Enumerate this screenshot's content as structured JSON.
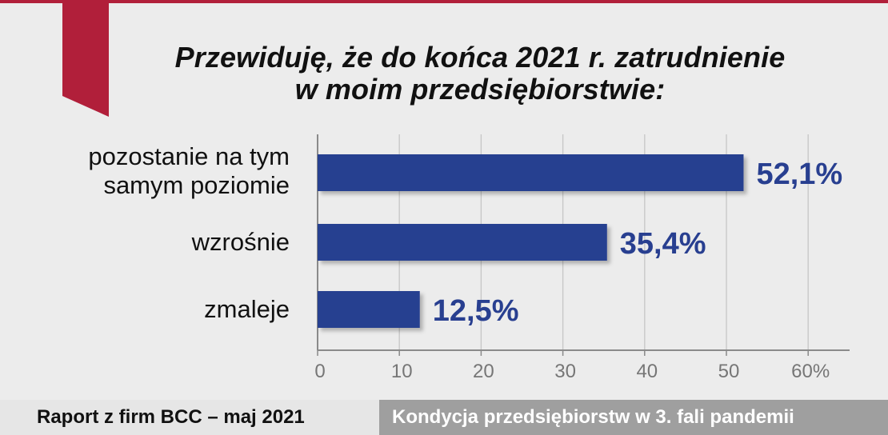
{
  "colors": {
    "background": "#ececec",
    "accent": "#b11f3a",
    "bar": "#283f90",
    "grid": "#c6c6c6",
    "axis": "#8a8a8a",
    "footer_left_bg": "#e6e6e6",
    "footer_right_bg": "#9f9f9f"
  },
  "decor": {
    "ribbon_icon": "bookmark-ribbon-icon"
  },
  "chart_data": {
    "type": "bar",
    "orientation": "horizontal",
    "title_lines": [
      "Przewiduję, że do końca 2021 r. zatrudnienie",
      "w moim przedsiębiorstwie:"
    ],
    "categories": [
      "pozostanie na tym samym poziomie",
      "wzrośnie",
      "zmaleje"
    ],
    "category_lines": [
      [
        "pozostanie na tym",
        "samym poziomie"
      ],
      [
        "wzrośnie"
      ],
      [
        "zmaleje"
      ]
    ],
    "values": [
      52.1,
      35.4,
      12.5
    ],
    "value_labels": [
      "52,1%",
      "35,4%",
      "12,5%"
    ],
    "xlim": [
      0,
      65
    ],
    "ticks": [
      0,
      10,
      20,
      30,
      40,
      50,
      60
    ],
    "tick_labels": [
      "0",
      "10",
      "20",
      "30",
      "40",
      "50",
      "60%"
    ],
    "grid": true
  },
  "footer": {
    "left_text": "Raport z firm BCC – maj 2021",
    "right_text": "Kondycja przedsiębiorstw w 3. fali pandemii"
  }
}
